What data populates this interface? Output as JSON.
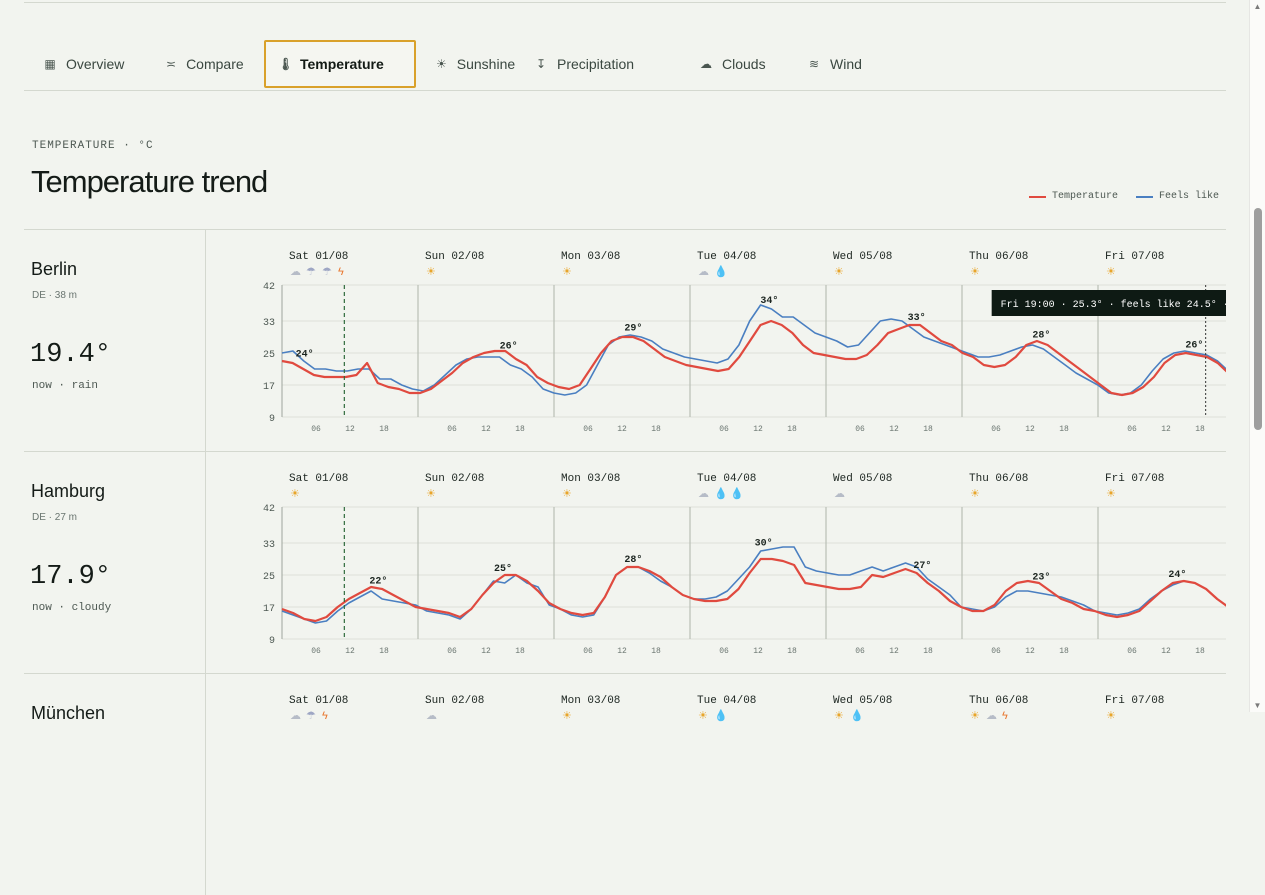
{
  "tabs": [
    {
      "label": "Overview",
      "icon": "grid-icon",
      "glyph": "▦"
    },
    {
      "label": "Compare",
      "icon": "compare-icon",
      "glyph": "≍"
    },
    {
      "label": "Temperature",
      "icon": "thermometer-icon",
      "glyph": "🌡"
    },
    {
      "label": "Sunshine",
      "icon": "sun-icon",
      "glyph": "☀"
    },
    {
      "label": "Precipitation",
      "icon": "precipitation-icon",
      "glyph": "↧"
    },
    {
      "label": "Clouds",
      "icon": "cloud-icon",
      "glyph": "☁"
    },
    {
      "label": "Wind",
      "icon": "wind-icon",
      "glyph": "≋"
    }
  ],
  "active_tab": "Temperature",
  "section": {
    "eyebrow": "TEMPERATURE · °C",
    "title": "Temperature trend"
  },
  "legend": [
    {
      "label": "Temperature",
      "color": "#e04a3f"
    },
    {
      "label": "Feels like",
      "color": "#4a7fc1"
    }
  ],
  "days": [
    "Sat 01/08",
    "Sun 02/08",
    "Mon 03/08",
    "Tue 04/08",
    "Wed 05/08",
    "Thu 06/08",
    "Fri 07/08"
  ],
  "hour_ticks": [
    "06",
    "12",
    "18"
  ],
  "yticks": [
    42,
    33,
    25,
    17,
    9
  ],
  "cities": [
    {
      "name": "Berlin",
      "meta": "DE · 38 m",
      "now_temp": "19.4°",
      "now_cond": "now · rain",
      "icons": [
        [
          "cloud",
          "storm",
          "storm",
          "lightning"
        ],
        [
          "sun"
        ],
        [
          "sun"
        ],
        [
          "cloud",
          "drop"
        ],
        [
          "sun"
        ],
        [
          "sun"
        ],
        [
          "sun"
        ]
      ],
      "peaks": [
        {
          "day": 0,
          "hour": 4,
          "label": "24°"
        },
        {
          "day": 1,
          "hour": 16,
          "label": "26°"
        },
        {
          "day": 2,
          "hour": 14,
          "label": "29°"
        },
        {
          "day": 3,
          "hour": 14,
          "label": "34°"
        },
        {
          "day": 4,
          "hour": 16,
          "label": "33°"
        },
        {
          "day": 5,
          "hour": 14,
          "label": "28°"
        },
        {
          "day": 6,
          "hour": 17,
          "label": "26°"
        }
      ],
      "now_hour": 11,
      "tooltip": "Fri 19:00 · 25.3° · feels like 24.5° ·",
      "tooltip_hour": 163,
      "temp": [
        23,
        22.5,
        21,
        19.5,
        19,
        19,
        19,
        19.5,
        22.5,
        17.5,
        16.5,
        16,
        15,
        15,
        16,
        18,
        20,
        22.5,
        24,
        25,
        25.5,
        25.5,
        23.5,
        22,
        19,
        17.5,
        16.5,
        16,
        17,
        21,
        25,
        28,
        29,
        29,
        28,
        26,
        24,
        23,
        22,
        21.5,
        21,
        20.5,
        21,
        24,
        28,
        32,
        33,
        32,
        30,
        27,
        25,
        24.5,
        24,
        23.5,
        23.5,
        24.5,
        27,
        30,
        31,
        32,
        32,
        30,
        28,
        27,
        25,
        24,
        22,
        21.5,
        22,
        24,
        27,
        28,
        27,
        25,
        23,
        21,
        19,
        17,
        15,
        14.5,
        15,
        16.5,
        19,
        22.5,
        24.5,
        25,
        24.5,
        24,
        22.5,
        20
      ],
      "feels": [
        25,
        25.5,
        23,
        21,
        21,
        20.5,
        20.5,
        21,
        21,
        18.5,
        18.5,
        17,
        16,
        15.5,
        17,
        19.5,
        22,
        23.5,
        24,
        24,
        24,
        22,
        21,
        19,
        16,
        15,
        14.5,
        15,
        17,
        22,
        27,
        29,
        29.5,
        29,
        28,
        26,
        25,
        24,
        23.5,
        23,
        22.5,
        23.5,
        27,
        33,
        37,
        36,
        34,
        34,
        32,
        30,
        29,
        28,
        26.5,
        27,
        30,
        33,
        33.5,
        33,
        31,
        29,
        28,
        27,
        26,
        25,
        24,
        24,
        24.5,
        25.5,
        26.5,
        27,
        26,
        24,
        22,
        20,
        18.5,
        17,
        15,
        14.5,
        15,
        17,
        20.5,
        23.5,
        25,
        25.5,
        25,
        24.5,
        23,
        20.5
      ]
    },
    {
      "name": "Hamburg",
      "meta": "DE · 27 m",
      "now_temp": "17.9°",
      "now_cond": "now · cloudy",
      "icons": [
        [
          "sun"
        ],
        [
          "sun"
        ],
        [
          "sun"
        ],
        [
          "cloud",
          "drop",
          "drop"
        ],
        [
          "cloud"
        ],
        [
          "sun"
        ],
        [
          "sun"
        ]
      ],
      "peaks": [
        {
          "day": 0,
          "hour": 17,
          "label": "22°"
        },
        {
          "day": 1,
          "hour": 15,
          "label": "25°"
        },
        {
          "day": 2,
          "hour": 14,
          "label": "28°"
        },
        {
          "day": 3,
          "hour": 13,
          "label": "30°"
        },
        {
          "day": 4,
          "hour": 17,
          "label": "27°"
        },
        {
          "day": 5,
          "hour": 14,
          "label": "23°"
        },
        {
          "day": 6,
          "hour": 14,
          "label": "24°"
        }
      ],
      "now_hour": 11,
      "tooltip": "",
      "tooltip_hour": -1,
      "temp": [
        16.5,
        15.5,
        14,
        13.5,
        14.5,
        17,
        19,
        20.5,
        22,
        21.5,
        20,
        18.5,
        17,
        16.5,
        16,
        15.5,
        14.5,
        16.5,
        20,
        23,
        25,
        25,
        23.5,
        21,
        18,
        16.5,
        15.5,
        15,
        15.5,
        19.5,
        25,
        27,
        27,
        26,
        24.5,
        22,
        20,
        19,
        18.5,
        18.5,
        19,
        21.5,
        25.5,
        29,
        29,
        28.5,
        27.5,
        23,
        22.5,
        22,
        21.5,
        21.5,
        22,
        25,
        24.5,
        25.5,
        26.5,
        25.5,
        23,
        21,
        18.5,
        17,
        16,
        16,
        17.5,
        21,
        23,
        23.5,
        23,
        21,
        19,
        18,
        16.5,
        16,
        15,
        14.5,
        15,
        16,
        18.5,
        21,
        23,
        23.5,
        23,
        21.5,
        19,
        17
      ],
      "feels": [
        16,
        15,
        14,
        13,
        13.5,
        16,
        18,
        19.5,
        21,
        19,
        18.5,
        18,
        17.5,
        16,
        15.5,
        15,
        14,
        16.5,
        20,
        23.5,
        23,
        25,
        23,
        22,
        17.5,
        16.5,
        15,
        14.5,
        15,
        19.5,
        25,
        27,
        27,
        25.5,
        23.5,
        22,
        20,
        19,
        19,
        19.5,
        21,
        24,
        27,
        31,
        31.5,
        32,
        32,
        27,
        26,
        25.5,
        25,
        25,
        26,
        27,
        26,
        27,
        28,
        27,
        24,
        22,
        20,
        17,
        16.5,
        16,
        17,
        19.5,
        21,
        21,
        20.5,
        20,
        19.5,
        18.5,
        17.5,
        16,
        15.5,
        15,
        15.5,
        16.5,
        19,
        21,
        22.5,
        23.5,
        23,
        21.5,
        19,
        17
      ]
    }
  ],
  "next_city": {
    "name": "München",
    "icons": [
      [
        "cloud",
        "storm",
        "lightning"
      ],
      [
        "cloud"
      ],
      [
        "sun"
      ],
      [
        "sun",
        "drop"
      ],
      [
        "sun",
        "drop"
      ],
      [
        "sun",
        "cloud",
        "lightning"
      ],
      [
        "sun"
      ]
    ]
  }
}
